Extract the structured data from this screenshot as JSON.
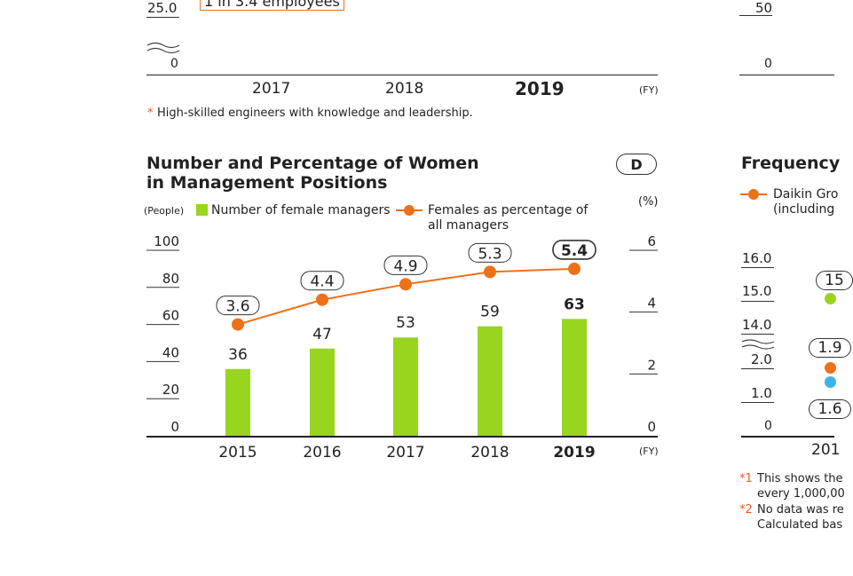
{
  "colors": {
    "bar": "#99d41f",
    "line": "#ee7019",
    "asterisk": "#ee5a24",
    "outline": "#ee7019",
    "blue": "#3bb4e6",
    "text": "#222222"
  },
  "top_left_chart": {
    "ytick_top": "25.0",
    "ytick_zero": "0",
    "callout": "1 in 3.4 employees",
    "xticks": [
      "2017",
      "2018",
      "2019"
    ],
    "x_unit": "(FY)",
    "footnote_mark": "*",
    "footnote": "High-skilled engineers with knowledge and leadership."
  },
  "top_right_partial": {
    "ytick_50": "50",
    "ytick_0": "0"
  },
  "main_chart": {
    "title_line1": "Number and Percentage of Women",
    "title_line2": "in Management Positions",
    "badge": "D",
    "left_axis_unit": "(People)",
    "right_axis_unit": "(%)",
    "legend_bar": "Number of female managers",
    "legend_line_1": "Females as percentage of",
    "legend_line_2": "all managers",
    "x_unit": "(FY)",
    "left_ticks": [
      "0",
      "20",
      "40",
      "60",
      "80",
      "100"
    ],
    "right_ticks": [
      "0",
      "2",
      "4",
      "6"
    ]
  },
  "chart_data": {
    "type": "bar",
    "title": "Number and Percentage of Women in Management Positions",
    "categories": [
      "2015",
      "2016",
      "2017",
      "2018",
      "2019"
    ],
    "series": [
      {
        "name": "Number of female managers",
        "type": "bar",
        "axis": "left",
        "values": [
          36,
          47,
          53,
          59,
          63
        ]
      },
      {
        "name": "Females as percentage of all managers",
        "type": "line",
        "axis": "right",
        "values": [
          3.6,
          4.4,
          4.9,
          5.3,
          5.4
        ]
      }
    ],
    "ylabel": "(People)",
    "y2label": "(%)",
    "xlabel": "(FY)",
    "ylim": [
      0,
      100
    ],
    "y2lim": [
      0,
      6
    ],
    "grid": false,
    "highlight_category": "2019"
  },
  "right_partial": {
    "title": "Frequency",
    "legend_text_1": "Daikin Gro",
    "legend_text_2": "(including",
    "ticks": [
      "16.0",
      "15.0",
      "14.0",
      "2.0",
      "1.0",
      "0"
    ],
    "pill_1": "15",
    "pill_2": "1.9",
    "pill_3": "1.6",
    "x_partial": "201",
    "footnote1_mark": "*1",
    "footnote1_a": "This shows the",
    "footnote1_b": "every 1,000,00",
    "footnote2_mark": "*2",
    "footnote2_a": "No data was re",
    "footnote2_b": "Calculated bas"
  }
}
